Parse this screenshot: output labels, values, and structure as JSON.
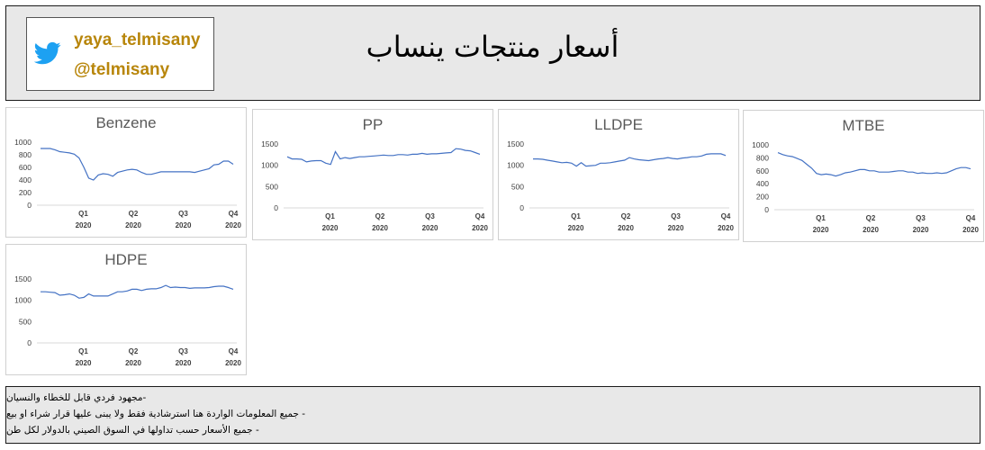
{
  "header": {
    "title": "أسعار منتجات ينساب",
    "handles": [
      "yaya_telmisany",
      "@telmisany"
    ],
    "icon": "twitter-bird-icon"
  },
  "footer": {
    "notes": [
      "-مجهود فردي قابل للخطاء والنسيان",
      "- جميع المعلومات الواردة هنا استرشادية فقط ولا يبنى عليها قرار شراء او بيع",
      "- جميع الأسعار حسب تداولها في السوق الصيني بالدولار لكل طن"
    ]
  },
  "colors": {
    "line": "#4472c4",
    "accent": "#b8860b",
    "panel": "#e8e8e8",
    "twitter": "#1da1f2"
  },
  "chart_data": [
    {
      "type": "line",
      "title": "Benzene",
      "x_ticks": [
        "Q1",
        "Q2",
        "Q3",
        "Q4"
      ],
      "x_tick_year": "2020",
      "ylim": [
        0,
        1000
      ],
      "y_ticks": [
        0,
        200,
        400,
        600,
        800,
        1000
      ],
      "series": [
        {
          "values": [
            900,
            900,
            900,
            880,
            850,
            840,
            830,
            810,
            750,
            600,
            430,
            400,
            480,
            500,
            490,
            460,
            520,
            540,
            560,
            570,
            560,
            520,
            490,
            490,
            510,
            530,
            530,
            530,
            530,
            530,
            530,
            530,
            520,
            540,
            560,
            580,
            640,
            650,
            700,
            700,
            650
          ]
        }
      ]
    },
    {
      "type": "line",
      "title": "PP",
      "x_ticks": [
        "Q1",
        "Q2",
        "Q3",
        "Q4"
      ],
      "x_tick_year": "2020",
      "ylim": [
        0,
        1500
      ],
      "y_ticks": [
        0,
        500,
        1000,
        1500
      ],
      "series": [
        {
          "values": [
            1200,
            1150,
            1150,
            1140,
            1080,
            1100,
            1110,
            1110,
            1050,
            1020,
            1320,
            1150,
            1180,
            1160,
            1180,
            1200,
            1200,
            1210,
            1220,
            1230,
            1240,
            1230,
            1230,
            1250,
            1250,
            1240,
            1260,
            1260,
            1280,
            1260,
            1270,
            1270,
            1280,
            1290,
            1300,
            1390,
            1380,
            1350,
            1340,
            1300,
            1260
          ]
        }
      ]
    },
    {
      "type": "line",
      "title": "LLDPE",
      "x_ticks": [
        "Q1",
        "Q2",
        "Q3",
        "Q4"
      ],
      "x_tick_year": "2020",
      "ylim": [
        0,
        1500
      ],
      "y_ticks": [
        0,
        500,
        1000,
        1500
      ],
      "series": [
        {
          "values": [
            1150,
            1150,
            1140,
            1120,
            1100,
            1080,
            1060,
            1070,
            1050,
            980,
            1060,
            980,
            990,
            1000,
            1050,
            1050,
            1060,
            1080,
            1100,
            1120,
            1180,
            1150,
            1130,
            1120,
            1110,
            1130,
            1150,
            1160,
            1180,
            1160,
            1150,
            1170,
            1180,
            1200,
            1200,
            1220,
            1260,
            1270,
            1270,
            1270,
            1230
          ]
        }
      ]
    },
    {
      "type": "line",
      "title": "MTBE",
      "x_ticks": [
        "Q1",
        "Q2",
        "Q3",
        "Q4"
      ],
      "x_tick_year": "2020",
      "ylim": [
        0,
        1000
      ],
      "y_ticks": [
        0,
        200,
        400,
        600,
        800,
        1000
      ],
      "series": [
        {
          "values": [
            880,
            850,
            830,
            820,
            790,
            760,
            700,
            640,
            560,
            540,
            550,
            540,
            520,
            540,
            570,
            580,
            600,
            620,
            620,
            600,
            600,
            580,
            580,
            580,
            590,
            600,
            600,
            580,
            580,
            560,
            570,
            560,
            560,
            570,
            560,
            570,
            600,
            630,
            650,
            650,
            630
          ]
        }
      ]
    },
    {
      "type": "line",
      "title": "HDPE",
      "x_ticks": [
        "Q1",
        "Q2",
        "Q3",
        "Q4"
      ],
      "x_tick_year": "2020",
      "ylim": [
        0,
        1500
      ],
      "y_ticks": [
        0,
        500,
        1000,
        1500
      ],
      "series": [
        {
          "values": [
            1200,
            1200,
            1190,
            1180,
            1120,
            1130,
            1150,
            1120,
            1050,
            1070,
            1150,
            1100,
            1100,
            1100,
            1100,
            1150,
            1200,
            1200,
            1220,
            1260,
            1260,
            1230,
            1260,
            1270,
            1270,
            1300,
            1350,
            1300,
            1310,
            1300,
            1300,
            1280,
            1290,
            1290,
            1290,
            1300,
            1320,
            1330,
            1330,
            1300,
            1260
          ]
        }
      ]
    }
  ]
}
